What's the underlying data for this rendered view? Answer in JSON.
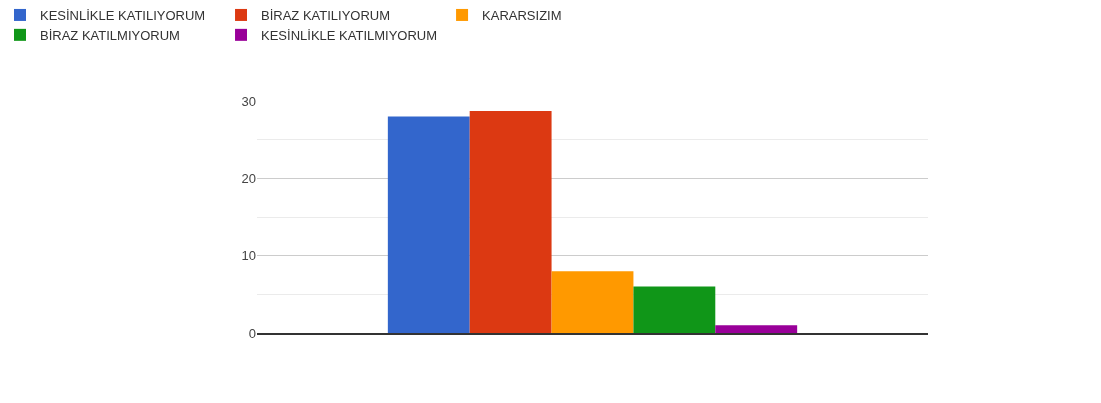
{
  "chart_data": {
    "type": "bar",
    "categories": [
      null
    ],
    "series": [
      {
        "name": "KESİNLİKLE KATILIYORUM",
        "color": "#3366cc",
        "values": [
          28
        ]
      },
      {
        "name": "BİRAZ KATILIYORUM",
        "color": "#dc3912",
        "values": [
          28.7
        ]
      },
      {
        "name": "KARARSIZIM",
        "color": "#ff9900",
        "values": [
          8
        ]
      },
      {
        "name": "BİRAZ KATILMIYORUM",
        "color": "#109618",
        "values": [
          6
        ]
      },
      {
        "name": "KESİNLİKLE KATILMIYORUM",
        "color": "#990099",
        "values": [
          1
        ]
      }
    ],
    "ylim": [
      0,
      30
    ],
    "yticks": [
      0,
      10,
      20,
      30
    ],
    "grid": "y",
    "legend": "top left",
    "tick_labels": "y"
  }
}
